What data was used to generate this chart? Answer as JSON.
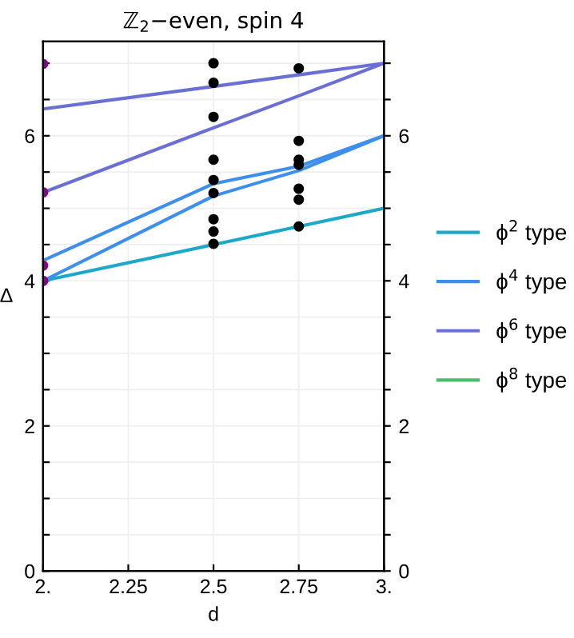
{
  "chart_data": {
    "type": "line",
    "title": "ℤ$_{2}$−even, spin 4",
    "xlabel": "d",
    "ylabel": "Δ",
    "xlim": [
      2,
      3
    ],
    "xticks": [
      {
        "value": 2,
        "label": "2."
      },
      2.25,
      2.5,
      2.75,
      {
        "value": 3,
        "label": "3."
      }
    ],
    "ylim": [
      0,
      7.3
    ],
    "yticks": [
      0,
      {
        "value": 0.5,
        "label": null
      },
      {
        "value": 1,
        "label": null
      },
      {
        "value": 1.5,
        "label": null
      },
      2,
      {
        "value": 2.5,
        "label": null
      },
      {
        "value": 3,
        "label": null
      },
      {
        "value": 3.5,
        "label": null
      },
      4,
      {
        "value": 4.5,
        "label": null
      },
      {
        "value": 5,
        "label": null
      },
      {
        "value": 5.5,
        "label": null
      },
      6,
      {
        "value": 6.5,
        "label": null
      },
      {
        "value": 7,
        "label": null
      }
    ],
    "y2lim": [
      0,
      7.3
    ],
    "y2ticks": [
      0,
      {
        "value": 0.5,
        "label": null
      },
      {
        "value": 1,
        "label": null
      },
      {
        "value": 1.5,
        "label": null
      },
      2,
      {
        "value": 2.5,
        "label": null
      },
      {
        "value": 3,
        "label": null
      },
      {
        "value": 3.5,
        "label": null
      },
      4,
      {
        "value": 4.5,
        "label": null
      },
      {
        "value": 5,
        "label": null
      },
      {
        "value": 5.5,
        "label": null
      },
      6,
      {
        "value": 6.5,
        "label": null
      },
      {
        "value": 7,
        "label": null
      }
    ],
    "grid": true,
    "legend": "right",
    "line_style": "solid",
    "series": [
      {
        "name": "ϕ$^{2}$ type",
        "color": "#1ca9c9",
        "x": [
          2,
          2.5,
          2.75,
          3
        ],
        "values": [
          4.0,
          4.5,
          4.75,
          5.0
        ]
      },
      {
        "name": "ϕ$^{4}$ type",
        "color": "#3d8fee",
        "x": [
          2,
          2.5,
          2.75,
          3
        ],
        "values": [
          4.28,
          5.34,
          5.58,
          6.0
        ]
      },
      {
        "color": "#3d8fee",
        "x": [
          2,
          2.5,
          2.75,
          3
        ],
        "values": [
          4.0,
          5.17,
          5.52,
          6.0
        ]
      },
      {
        "name": "ϕ$^{6}$ type",
        "color": "#6a6fd6",
        "x": [
          2,
          2.5,
          2.75,
          3
        ],
        "values": [
          6.37,
          6.68,
          6.84,
          7.0
        ]
      },
      {
        "color": "#6a6fd6",
        "x": [
          2,
          2.5,
          2.75,
          3
        ],
        "values": [
          5.22,
          6.11,
          6.55,
          7.0
        ]
      },
      {
        "name": "ϕ$^{8}$ type",
        "color": "#4cbb6c"
      },
      {
        "type": "scatter",
        "marker": "circle",
        "color": "#8b008b",
        "x": [
          2,
          2,
          2,
          2
        ],
        "values": [
          6.99,
          5.22,
          4.21,
          4.0
        ]
      },
      {
        "type": "scatter",
        "marker": "circle",
        "color": "#000000",
        "x": [
          2.5,
          2.5,
          2.5,
          2.5,
          2.5,
          2.5,
          2.5,
          2.5,
          2.5,
          2.75,
          2.75,
          2.75,
          2.75,
          2.75,
          2.75,
          2.75
        ],
        "values": [
          7.0,
          6.73,
          6.26,
          5.67,
          5.39,
          5.21,
          4.85,
          4.68,
          4.51,
          6.93,
          5.93,
          5.67,
          5.6,
          5.27,
          5.12,
          4.75
        ]
      }
    ]
  }
}
